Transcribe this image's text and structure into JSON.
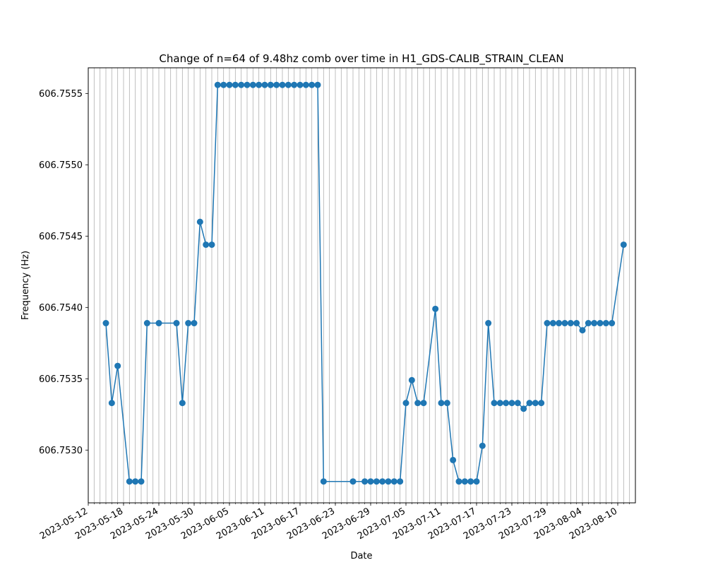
{
  "chart_data": {
    "type": "line",
    "title": "Change of n=64 of 9.48hz comb over time in H1_GDS-CALIB_STRAIN_CLEAN",
    "xlabel": "Date",
    "ylabel": "Frequency (Hz)",
    "xlim": [
      "2023-05-12",
      "2023-08-13"
    ],
    "ylim": [
      606.75263,
      606.75568
    ],
    "grid": "x-daily",
    "marker": "circle",
    "color": "#1f77b4",
    "x_ticks": [
      "2023-05-12",
      "2023-05-18",
      "2023-05-24",
      "2023-05-30",
      "2023-06-05",
      "2023-06-11",
      "2023-06-17",
      "2023-06-23",
      "2023-06-29",
      "2023-07-05",
      "2023-07-11",
      "2023-07-17",
      "2023-07-23",
      "2023-07-29",
      "2023-08-04",
      "2023-08-10"
    ],
    "y_ticks": [
      "606.7530",
      "606.7535",
      "606.7540",
      "606.7545",
      "606.7550",
      "606.7555"
    ],
    "series": [
      {
        "x": [
          "2023-05-15",
          "2023-05-16",
          "2023-05-17",
          "2023-05-19",
          "2023-05-20",
          "2023-05-21",
          "2023-05-22",
          "2023-05-24",
          "2023-05-27",
          "2023-05-28",
          "2023-05-29",
          "2023-05-30",
          "2023-05-31",
          "2023-06-01",
          "2023-06-02",
          "2023-06-03",
          "2023-06-04",
          "2023-06-05",
          "2023-06-06",
          "2023-06-07",
          "2023-06-08",
          "2023-06-09",
          "2023-06-10",
          "2023-06-11",
          "2023-06-12",
          "2023-06-13",
          "2023-06-14",
          "2023-06-15",
          "2023-06-16",
          "2023-06-17",
          "2023-06-18",
          "2023-06-19",
          "2023-06-20",
          "2023-06-21",
          "2023-06-26",
          "2023-06-28",
          "2023-06-29",
          "2023-06-30",
          "2023-07-01",
          "2023-07-02",
          "2023-07-03",
          "2023-07-04",
          "2023-07-05",
          "2023-07-06",
          "2023-07-07",
          "2023-07-08",
          "2023-07-10",
          "2023-07-11",
          "2023-07-12",
          "2023-07-13",
          "2023-07-14",
          "2023-07-15",
          "2023-07-16",
          "2023-07-17",
          "2023-07-18",
          "2023-07-19",
          "2023-07-20",
          "2023-07-21",
          "2023-07-22",
          "2023-07-23",
          "2023-07-24",
          "2023-07-25",
          "2023-07-26",
          "2023-07-27",
          "2023-07-28",
          "2023-07-29",
          "2023-07-30",
          "2023-07-31",
          "2023-08-01",
          "2023-08-02",
          "2023-08-03",
          "2023-08-04",
          "2023-08-05",
          "2023-08-06",
          "2023-08-07",
          "2023-08-08",
          "2023-08-09",
          "2023-08-11"
        ],
        "y": [
          606.75389,
          606.75333,
          606.75359,
          606.75278,
          606.75278,
          606.75278,
          606.75389,
          606.75389,
          606.75389,
          606.75333,
          606.75389,
          606.75389,
          606.7546,
          606.75444,
          606.75444,
          606.75556,
          606.75556,
          606.75556,
          606.75556,
          606.75556,
          606.75556,
          606.75556,
          606.75556,
          606.75556,
          606.75556,
          606.75556,
          606.75556,
          606.75556,
          606.75556,
          606.75556,
          606.75556,
          606.75556,
          606.75556,
          606.75278,
          606.75278,
          606.75278,
          606.75278,
          606.75278,
          606.75278,
          606.75278,
          606.75278,
          606.75278,
          606.75333,
          606.75349,
          606.75333,
          606.75333,
          606.75399,
          606.75333,
          606.75333,
          606.75293,
          606.75278,
          606.75278,
          606.75278,
          606.75278,
          606.75303,
          606.75389,
          606.75333,
          606.75333,
          606.75333,
          606.75333,
          606.75333,
          606.75329,
          606.75333,
          606.75333,
          606.75333,
          606.75389,
          606.75389,
          606.75389,
          606.75389,
          606.75389,
          606.75389,
          606.75384,
          606.75389,
          606.75389,
          606.75389,
          606.75389,
          606.75389,
          606.75444
        ]
      }
    ]
  }
}
